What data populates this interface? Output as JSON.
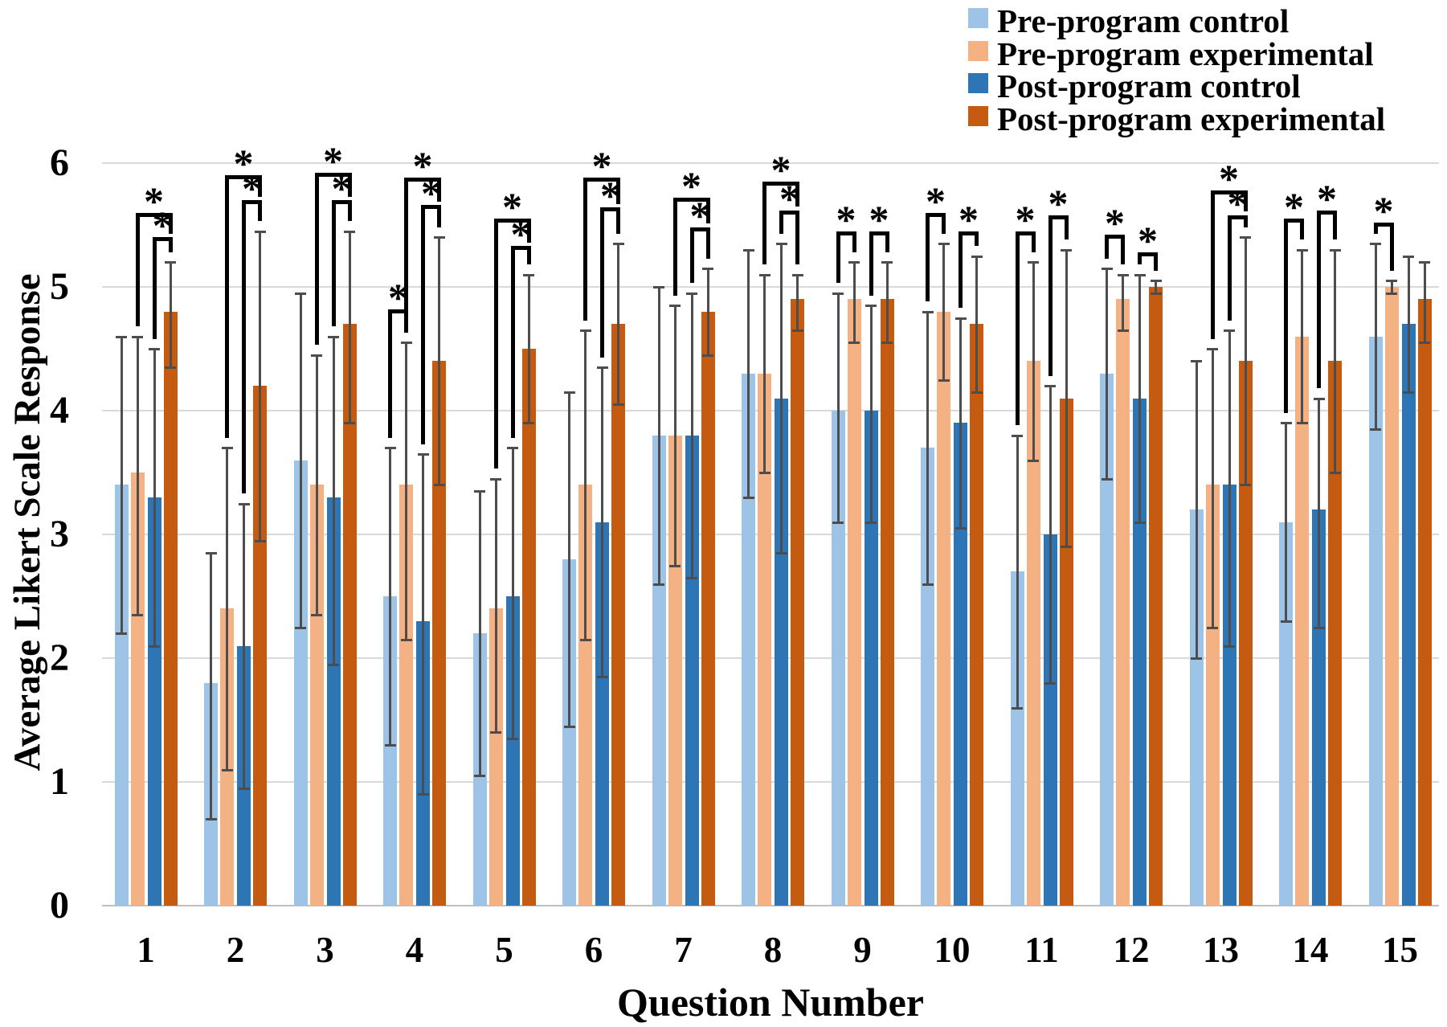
{
  "colors": {
    "pre_control": "#9DC3E6",
    "pre_experimental": "#F4B183",
    "post_control": "#2E75B6",
    "post_experimental": "#C55A11",
    "error_bar": "#4d4d4d",
    "bracket": "#000000",
    "gridline": "#D9D9D9",
    "axis_line": "#BFBFBF",
    "text": "#000000"
  },
  "chart_data": {
    "type": "bar",
    "title": "",
    "xlabel": "Question Number",
    "ylabel": "Average Likert Scale Response",
    "ylim": [
      0,
      6
    ],
    "yticks": [
      0,
      1,
      2,
      3,
      4,
      5,
      6
    ],
    "grid": true,
    "legend_position": "top-right",
    "significance_marker": "*",
    "categories": [
      "1",
      "2",
      "3",
      "4",
      "5",
      "6",
      "7",
      "8",
      "9",
      "10",
      "11",
      "12",
      "13",
      "14",
      "15"
    ],
    "series": [
      {
        "name": "Pre-program control",
        "color": "#9DC3E6",
        "values": [
          3.4,
          1.8,
          3.6,
          2.5,
          2.2,
          2.8,
          3.8,
          4.3,
          4.0,
          3.7,
          2.7,
          4.3,
          3.2,
          3.1,
          4.6
        ],
        "err_low": [
          2.2,
          0.7,
          2.25,
          1.3,
          1.05,
          1.45,
          2.6,
          3.3,
          3.1,
          2.6,
          1.6,
          3.45,
          2.0,
          2.3,
          3.85
        ],
        "err_high": [
          4.6,
          2.85,
          4.95,
          3.7,
          3.35,
          4.15,
          5.0,
          5.3,
          4.95,
          4.8,
          3.8,
          5.15,
          4.4,
          3.9,
          5.35
        ]
      },
      {
        "name": "Pre-program experimental",
        "color": "#F4B183",
        "values": [
          3.5,
          2.4,
          3.4,
          3.4,
          2.4,
          3.4,
          3.8,
          4.3,
          4.9,
          4.8,
          4.4,
          4.9,
          3.4,
          4.6,
          5.0
        ],
        "err_low": [
          2.35,
          1.1,
          2.35,
          2.15,
          1.4,
          2.15,
          2.75,
          3.5,
          4.55,
          4.25,
          3.6,
          4.65,
          2.25,
          3.9,
          4.95
        ],
        "err_high": [
          4.6,
          3.7,
          4.45,
          4.55,
          3.45,
          4.65,
          4.85,
          5.1,
          5.2,
          5.35,
          5.2,
          5.1,
          4.5,
          5.3,
          5.05
        ]
      },
      {
        "name": "Post-program control",
        "color": "#2E75B6",
        "values": [
          3.3,
          2.1,
          3.3,
          2.3,
          2.5,
          3.1,
          3.8,
          4.1,
          4.0,
          3.9,
          3.0,
          4.1,
          3.4,
          3.2,
          4.7
        ],
        "err_low": [
          2.1,
          0.95,
          1.95,
          0.9,
          1.35,
          1.85,
          2.65,
          2.85,
          3.1,
          3.05,
          1.8,
          3.1,
          2.1,
          2.25,
          4.15
        ],
        "err_high": [
          4.5,
          3.25,
          4.6,
          3.65,
          3.7,
          4.35,
          4.95,
          5.35,
          4.85,
          4.75,
          4.2,
          5.1,
          4.65,
          4.1,
          5.25
        ]
      },
      {
        "name": "Post-program experimental",
        "color": "#C55A11",
        "values": [
          4.8,
          4.2,
          4.7,
          4.4,
          4.5,
          4.7,
          4.8,
          4.9,
          4.9,
          4.7,
          4.1,
          5.0,
          4.4,
          4.4,
          4.9
        ],
        "err_low": [
          4.35,
          2.95,
          3.9,
          3.4,
          3.9,
          4.05,
          4.45,
          4.65,
          4.55,
          4.15,
          2.9,
          4.95,
          3.4,
          3.5,
          4.55
        ],
        "err_high": [
          5.2,
          5.45,
          5.45,
          5.4,
          5.1,
          5.35,
          5.15,
          5.1,
          5.2,
          5.25,
          5.3,
          5.05,
          5.4,
          5.3,
          5.2
        ]
      }
    ],
    "significance": [
      {
        "q": 1,
        "pairs": [
          {
            "a": 1,
            "b": 3,
            "h": 5.6
          },
          {
            "a": 2,
            "b": 3,
            "h": 5.4
          }
        ]
      },
      {
        "q": 2,
        "pairs": [
          {
            "a": 1,
            "b": 3,
            "h": 5.9
          },
          {
            "a": 2,
            "b": 3,
            "h": 5.7
          }
        ]
      },
      {
        "q": 3,
        "pairs": [
          {
            "a": 1,
            "b": 3,
            "h": 5.92
          },
          {
            "a": 2,
            "b": 3,
            "h": 5.7
          }
        ]
      },
      {
        "q": 4,
        "pairs": [
          {
            "a": 0,
            "b": 1,
            "h": 4.82
          },
          {
            "a": 1,
            "b": 3,
            "h": 5.88
          },
          {
            "a": 2,
            "b": 3,
            "h": 5.66
          }
        ]
      },
      {
        "q": 5,
        "pairs": [
          {
            "a": 1,
            "b": 3,
            "h": 5.55
          },
          {
            "a": 2,
            "b": 3,
            "h": 5.33
          }
        ]
      },
      {
        "q": 6,
        "pairs": [
          {
            "a": 1,
            "b": 3,
            "h": 5.88
          },
          {
            "a": 2,
            "b": 3,
            "h": 5.64
          }
        ]
      },
      {
        "q": 7,
        "pairs": [
          {
            "a": 1,
            "b": 3,
            "h": 5.72
          },
          {
            "a": 2,
            "b": 3,
            "h": 5.48
          }
        ]
      },
      {
        "q": 8,
        "pairs": [
          {
            "a": 1,
            "b": 3,
            "h": 5.85
          },
          {
            "a": 2,
            "b": 3,
            "h": 5.62
          }
        ]
      },
      {
        "q": 9,
        "pairs": [
          {
            "a": 0,
            "b": 1,
            "h": 5.45
          },
          {
            "a": 2,
            "b": 3,
            "h": 5.45
          }
        ]
      },
      {
        "q": 10,
        "pairs": [
          {
            "a": 0,
            "b": 1,
            "h": 5.6
          },
          {
            "a": 2,
            "b": 3,
            "h": 5.45
          }
        ]
      },
      {
        "q": 11,
        "pairs": [
          {
            "a": 0,
            "b": 1,
            "h": 5.45
          },
          {
            "a": 2,
            "b": 3,
            "h": 5.58
          }
        ]
      },
      {
        "q": 12,
        "pairs": [
          {
            "a": 0,
            "b": 1,
            "h": 5.42
          },
          {
            "a": 2,
            "b": 3,
            "h": 5.28
          }
        ]
      },
      {
        "q": 13,
        "pairs": [
          {
            "a": 1,
            "b": 3,
            "h": 5.78
          },
          {
            "a": 2,
            "b": 3,
            "h": 5.58
          }
        ]
      },
      {
        "q": 14,
        "pairs": [
          {
            "a": 0,
            "b": 1,
            "h": 5.55
          },
          {
            "a": 2,
            "b": 3,
            "h": 5.62
          }
        ]
      },
      {
        "q": 15,
        "pairs": [
          {
            "a": 0,
            "b": 1,
            "h": 5.52
          }
        ]
      }
    ]
  }
}
